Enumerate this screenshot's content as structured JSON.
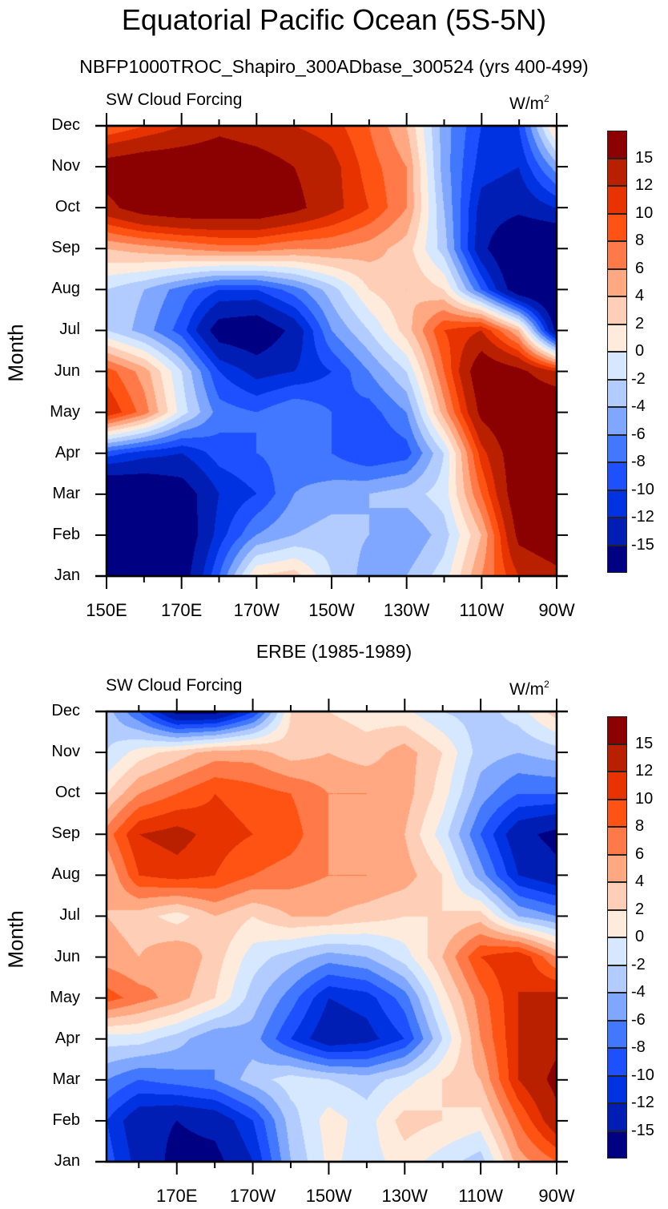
{
  "title": "Equatorial Pacific Ocean (5S-5N)",
  "chart_data": [
    {
      "type": "heatmap",
      "subtitle": "NBFP1000TROC_Shapiro_300ADbase_300524 (yrs 400-499)",
      "left_label": "SW Cloud Forcing",
      "units": "W/m",
      "units_sup": "2",
      "ylabel": "Month",
      "y_ticks": [
        "Jan",
        "Feb",
        "Mar",
        "Apr",
        "May",
        "Jun",
        "Jul",
        "Aug",
        "Sep",
        "Oct",
        "Nov",
        "Dec"
      ],
      "x_ticks": [
        "150E",
        "170E",
        "170W",
        "150W",
        "130W",
        "110W",
        "90W"
      ],
      "x_tick_values": [
        150,
        170,
        190,
        210,
        230,
        250,
        270
      ],
      "xlim": [
        150,
        270
      ],
      "ylim": [
        "Jan",
        "Dec"
      ],
      "lon_grid": [
        150,
        160,
        170,
        180,
        190,
        200,
        210,
        220,
        230,
        240,
        250,
        260,
        270
      ],
      "months": [
        "Jan",
        "Feb",
        "Mar",
        "Apr",
        "May",
        "Jun",
        "Jul",
        "Aug",
        "Sep",
        "Oct",
        "Nov",
        "Dec"
      ],
      "values": [
        [
          -20,
          -20,
          -17,
          -8,
          2,
          3,
          -2,
          -5,
          -4,
          -1,
          6,
          12,
          14
        ],
        [
          -20,
          -20,
          -18,
          -11,
          -6,
          -4,
          -3,
          -4,
          -6,
          -3,
          4,
          16,
          18
        ],
        [
          -20,
          -19,
          -17,
          -12,
          -10,
          -6,
          -5,
          -4,
          -3,
          -1,
          8,
          18,
          20
        ],
        [
          -9,
          -11,
          -12,
          -9,
          -8,
          -7,
          -8,
          -10,
          -9,
          -2,
          11,
          18,
          20
        ],
        [
          12,
          7,
          -1,
          -7,
          -8,
          -6,
          -8,
          -9,
          -6,
          5,
          16,
          19,
          20
        ],
        [
          9,
          5,
          -2,
          -10,
          -13,
          -12,
          -10,
          -6,
          -2,
          8,
          18,
          16,
          12
        ],
        [
          -2,
          -5,
          -9,
          -17,
          -18,
          -14,
          -6,
          -2,
          3,
          10,
          12,
          4,
          -16
        ],
        [
          -2,
          -4,
          -7,
          -10,
          -10,
          -7,
          -3,
          2,
          4,
          2,
          -8,
          -18,
          -20
        ],
        [
          4,
          5,
          6,
          7,
          7,
          6,
          6,
          5,
          3,
          -3,
          -14,
          -20,
          -20
        ],
        [
          14,
          17,
          18,
          18,
          18,
          16,
          13,
          10,
          6,
          -4,
          -13,
          -14,
          -12
        ],
        [
          17,
          18,
          18,
          18,
          17,
          15,
          13,
          9,
          6,
          -5,
          -11,
          -12,
          -5
        ],
        [
          8,
          10,
          12,
          14,
          13,
          12,
          11,
          8,
          4,
          -5,
          -10,
          -10,
          3
        ]
      ]
    },
    {
      "type": "heatmap",
      "subtitle": "ERBE (1985-1989)",
      "left_label": "SW Cloud Forcing",
      "units": "W/m",
      "units_sup": "2",
      "ylabel": "Month",
      "y_ticks": [
        "Jan",
        "Feb",
        "Mar",
        "Apr",
        "May",
        "Jun",
        "Jul",
        "Aug",
        "Sep",
        "Oct",
        "Nov",
        "Dec"
      ],
      "x_ticks": [
        "170E",
        "170W",
        "150W",
        "130W",
        "110W",
        "90W"
      ],
      "x_tick_values": [
        170,
        190,
        210,
        230,
        250,
        270
      ],
      "xlim": [
        151.5,
        270
      ],
      "ylim": [
        "Jan",
        "Dec"
      ],
      "lon_grid": [
        151.5,
        160,
        170,
        180,
        190,
        200,
        210,
        220,
        230,
        240,
        250,
        260,
        270
      ],
      "months": [
        "Jan",
        "Feb",
        "Mar",
        "Apr",
        "May",
        "Jun",
        "Jul",
        "Aug",
        "Sep",
        "Oct",
        "Nov",
        "Dec"
      ],
      "values": [
        [
          -9,
          -13,
          -16,
          -16,
          -12,
          -4,
          0.5,
          -1,
          1,
          -1,
          -3,
          5,
          8
        ],
        [
          -10,
          -14,
          -15,
          -14,
          -10,
          -3,
          1,
          -1,
          3,
          2,
          1,
          8,
          14
        ],
        [
          -6,
          -8,
          -7,
          -6,
          -3,
          -1,
          -2,
          -3,
          -1,
          2,
          4,
          12,
          16
        ],
        [
          -1,
          -1,
          -3,
          -6,
          -5,
          -10,
          -14,
          -13,
          -10,
          -2,
          6,
          12,
          14
        ],
        [
          9,
          7,
          5,
          2,
          -3,
          -7,
          -12,
          -11,
          -7,
          1,
          7,
          12,
          13
        ],
        [
          5,
          4,
          6,
          3,
          -1,
          -3,
          -5,
          -4,
          -1,
          4,
          10,
          12,
          6
        ],
        [
          4,
          3,
          1,
          4,
          2,
          4,
          4,
          3,
          2,
          2,
          3,
          -4,
          -6
        ],
        [
          4,
          10,
          11,
          10,
          8,
          7,
          6,
          6,
          5,
          2,
          -5,
          -12,
          -14
        ],
        [
          7,
          12,
          13,
          11,
          10,
          9,
          6,
          5,
          4,
          -1,
          -8,
          -14,
          -16
        ],
        [
          2,
          6,
          8,
          10,
          9,
          8,
          6,
          6,
          5,
          1,
          -5,
          -8,
          -8
        ],
        [
          -2,
          1,
          3,
          5,
          5,
          3,
          4,
          3,
          5,
          2,
          -3,
          -4,
          -3
        ],
        [
          -3,
          -8,
          -16,
          -16,
          -10,
          2,
          2,
          1,
          0.5,
          -2,
          -3,
          -1,
          3
        ]
      ]
    }
  ],
  "colorbar": {
    "levels": [
      -15,
      -12,
      -10,
      -8,
      -6,
      -4,
      -2,
      0,
      2,
      4,
      6,
      8,
      10,
      12,
      15
    ],
    "labels": [
      "15",
      "12",
      "10",
      "8",
      "6",
      "4",
      "2",
      "0",
      "-2",
      "-4",
      "-6",
      "-8",
      "-10",
      "-12",
      "-15"
    ],
    "colors": [
      "#000082",
      "#001EB4",
      "#0032E1",
      "#1E50FF",
      "#4178FF",
      "#80A7FF",
      "#B3CCFF",
      "#D6E8FF",
      "#FFEBDC",
      "#FFCEB6",
      "#FFA882",
      "#FF7A48",
      "#FF5314",
      "#E63300",
      "#B82000",
      "#8B0000"
    ]
  }
}
